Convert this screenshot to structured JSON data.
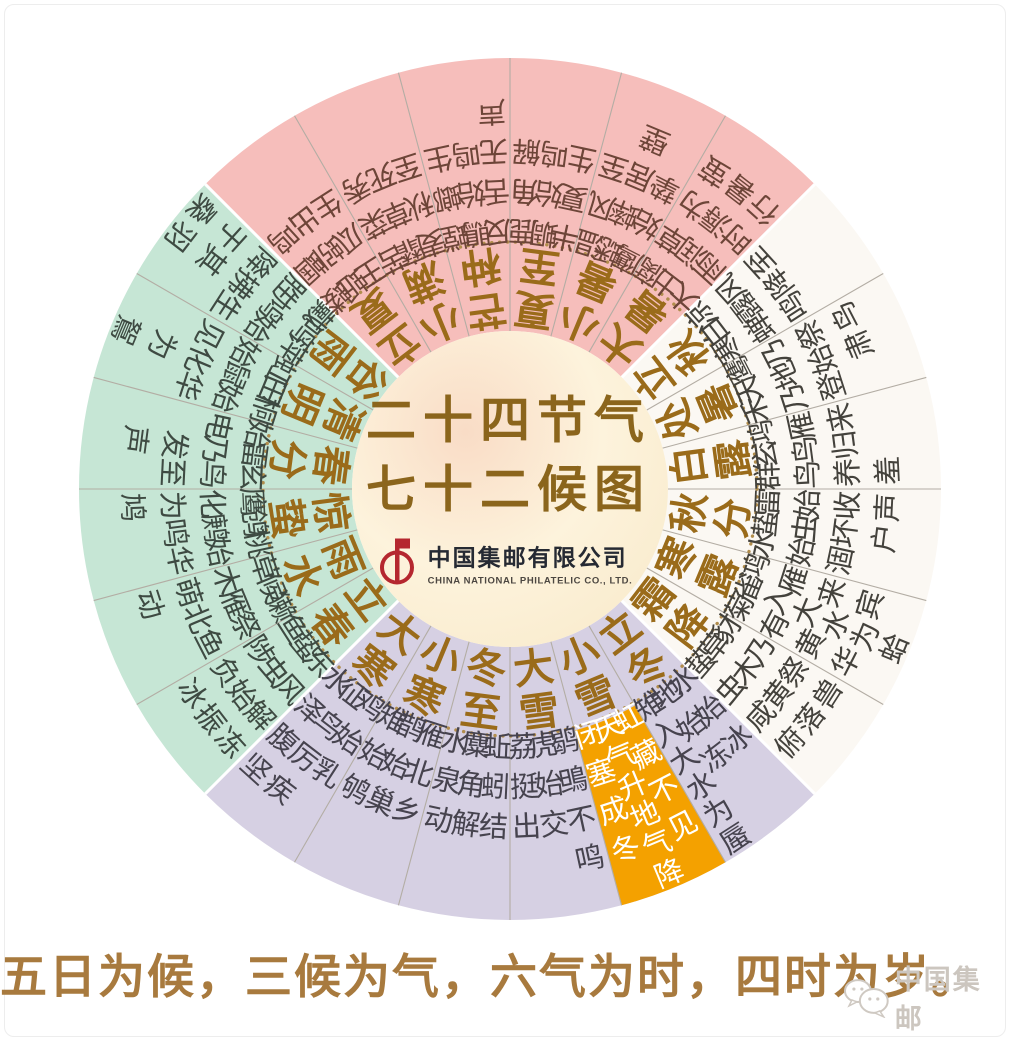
{
  "center": {
    "title_line1": "二十四节气",
    "title_line2": "七十二候图",
    "company_cn": "中国集邮有限公司",
    "company_en": "CHINA NATIONAL PHILATELIC CO., LTD."
  },
  "caption": "五日为候，三候为气，六气为时，四时为岁。",
  "watermark": {
    "icon": "wechat-icon",
    "label": "中国集邮"
  },
  "colors": {
    "spring": "#c6e6d5",
    "summer": "#f6bebb",
    "autumn": "#fbf8f3",
    "winter": "#d6d0e3",
    "highlight": "#f4a100",
    "ink_spring": "#3e4a42",
    "ink_summer": "#6d4538",
    "ink_autumn": "#44423c",
    "ink_winter": "#46434e",
    "ink_highlight": "#ffffff",
    "term": "#9a6b1a",
    "dotted_ring": "#b18d4d",
    "divider": "#b3ada4",
    "season_divider": "#ffffff",
    "title": "#8b651c",
    "caption": "#a87a3e",
    "company_cn": "#262a33",
    "company_en": "#4c4741",
    "logo_red": "#b5272f",
    "watermark": "#ccc6bf",
    "center_a": "#f9dcc6",
    "center_b": "#fdf3dc",
    "center_c": "#f8e9c9"
  },
  "wheel": {
    "highlight_term": "小雪",
    "sectors": [
      {
        "term": "立春",
        "season": "spring",
        "highlight": false,
        "pentads": [
          "东风解冻",
          "蛰虫始振",
          "鱼陟负冰"
        ]
      },
      {
        "term": "雨水",
        "season": "spring",
        "highlight": false,
        "pentads": [
          "獭祭鱼",
          "候雁北",
          "草木萌动"
        ]
      },
      {
        "term": "惊蛰",
        "season": "spring",
        "highlight": false,
        "pentads": [
          "桃始华",
          "鸧鹒鸣",
          "鹰化为鸠"
        ]
      },
      {
        "term": "春分",
        "season": "spring",
        "highlight": false,
        "pentads": [
          "玄鸟至",
          "雷乃发声",
          "始电"
        ]
      },
      {
        "term": "清明",
        "season": "spring",
        "highlight": false,
        "pentads": [
          "桐始华",
          "田鼠化为鴽",
          "虹始见"
        ]
      },
      {
        "term": "谷雨",
        "season": "spring",
        "highlight": false,
        "pentads": [
          "萍始生",
          "鸣鸠拂其羽",
          "戴胜降于桑"
        ]
      },
      {
        "term": "立夏",
        "season": "summer",
        "highlight": false,
        "pentads": [
          "蝼蝈鸣",
          "蚯蚓出",
          "王瓜生"
        ]
      },
      {
        "term": "小满",
        "season": "summer",
        "highlight": false,
        "pentads": [
          "苦菜秀",
          "靡草死",
          "麦秋至"
        ]
      },
      {
        "term": "芒种",
        "season": "summer",
        "highlight": false,
        "pentads": [
          "螳螂生",
          "鵙始鸣",
          "反舌无声"
        ]
      },
      {
        "term": "夏至",
        "season": "summer",
        "highlight": false,
        "pentads": [
          "鹿角解",
          "蜩始鸣",
          "半夏生"
        ]
      },
      {
        "term": "小暑",
        "season": "summer",
        "highlight": false,
        "pentads": [
          "温风至",
          "蟋蟀居壁",
          "鹰始挚"
        ]
      },
      {
        "term": "大暑",
        "season": "summer",
        "highlight": false,
        "pentads": [
          "腐草为萤",
          "土润溽暑",
          "大雨时行"
        ]
      },
      {
        "term": "立秋",
        "season": "autumn",
        "highlight": false,
        "pentads": [
          "凉风至",
          "白露降",
          "寒蝉鸣"
        ]
      },
      {
        "term": "处暑",
        "season": "autumn",
        "highlight": false,
        "pentads": [
          "鹰乃祭鸟",
          "天地始肃",
          "禾乃登"
        ]
      },
      {
        "term": "白露",
        "season": "autumn",
        "highlight": false,
        "pentads": [
          "鸿雁来",
          "玄鸟归",
          "群鸟养羞"
        ]
      },
      {
        "term": "秋分",
        "season": "autumn",
        "highlight": false,
        "pentads": [
          "雷始收声",
          "蛰虫坏户",
          "水始涸"
        ]
      },
      {
        "term": "寒露",
        "season": "autumn",
        "highlight": false,
        "pentads": [
          "鸿雁来宾",
          "雀入大水为蛤",
          "菊有黄华"
        ]
      },
      {
        "term": "霜降",
        "season": "autumn",
        "highlight": false,
        "pentads": [
          "豺乃祭兽",
          "草木黄落",
          "蛰虫咸俯"
        ]
      },
      {
        "term": "立冬",
        "season": "winter",
        "highlight": false,
        "pentads": [
          "水始冰",
          "地始冻",
          "雉入大水为蜃"
        ]
      },
      {
        "term": "小雪",
        "season": "winter",
        "highlight": true,
        "pentads": [
          "虹藏不见",
          "天气升地气降",
          "闭塞成冬"
        ]
      },
      {
        "term": "大雪",
        "season": "winter",
        "highlight": false,
        "pentads": [
          "鹖鴠不鸣",
          "虎始交",
          "荔挺出"
        ]
      },
      {
        "term": "冬至",
        "season": "winter",
        "highlight": false,
        "pentads": [
          "蚯蚓结",
          "麋角解",
          "水泉动"
        ]
      },
      {
        "term": "小寒",
        "season": "winter",
        "highlight": false,
        "pentads": [
          "雁北乡",
          "鹊始巢",
          "雉始鸲"
        ]
      },
      {
        "term": "大寒",
        "season": "winter",
        "highlight": false,
        "pentads": [
          "鸡始乳",
          "征鸟厉疾",
          "水泽腹坚"
        ]
      }
    ]
  }
}
